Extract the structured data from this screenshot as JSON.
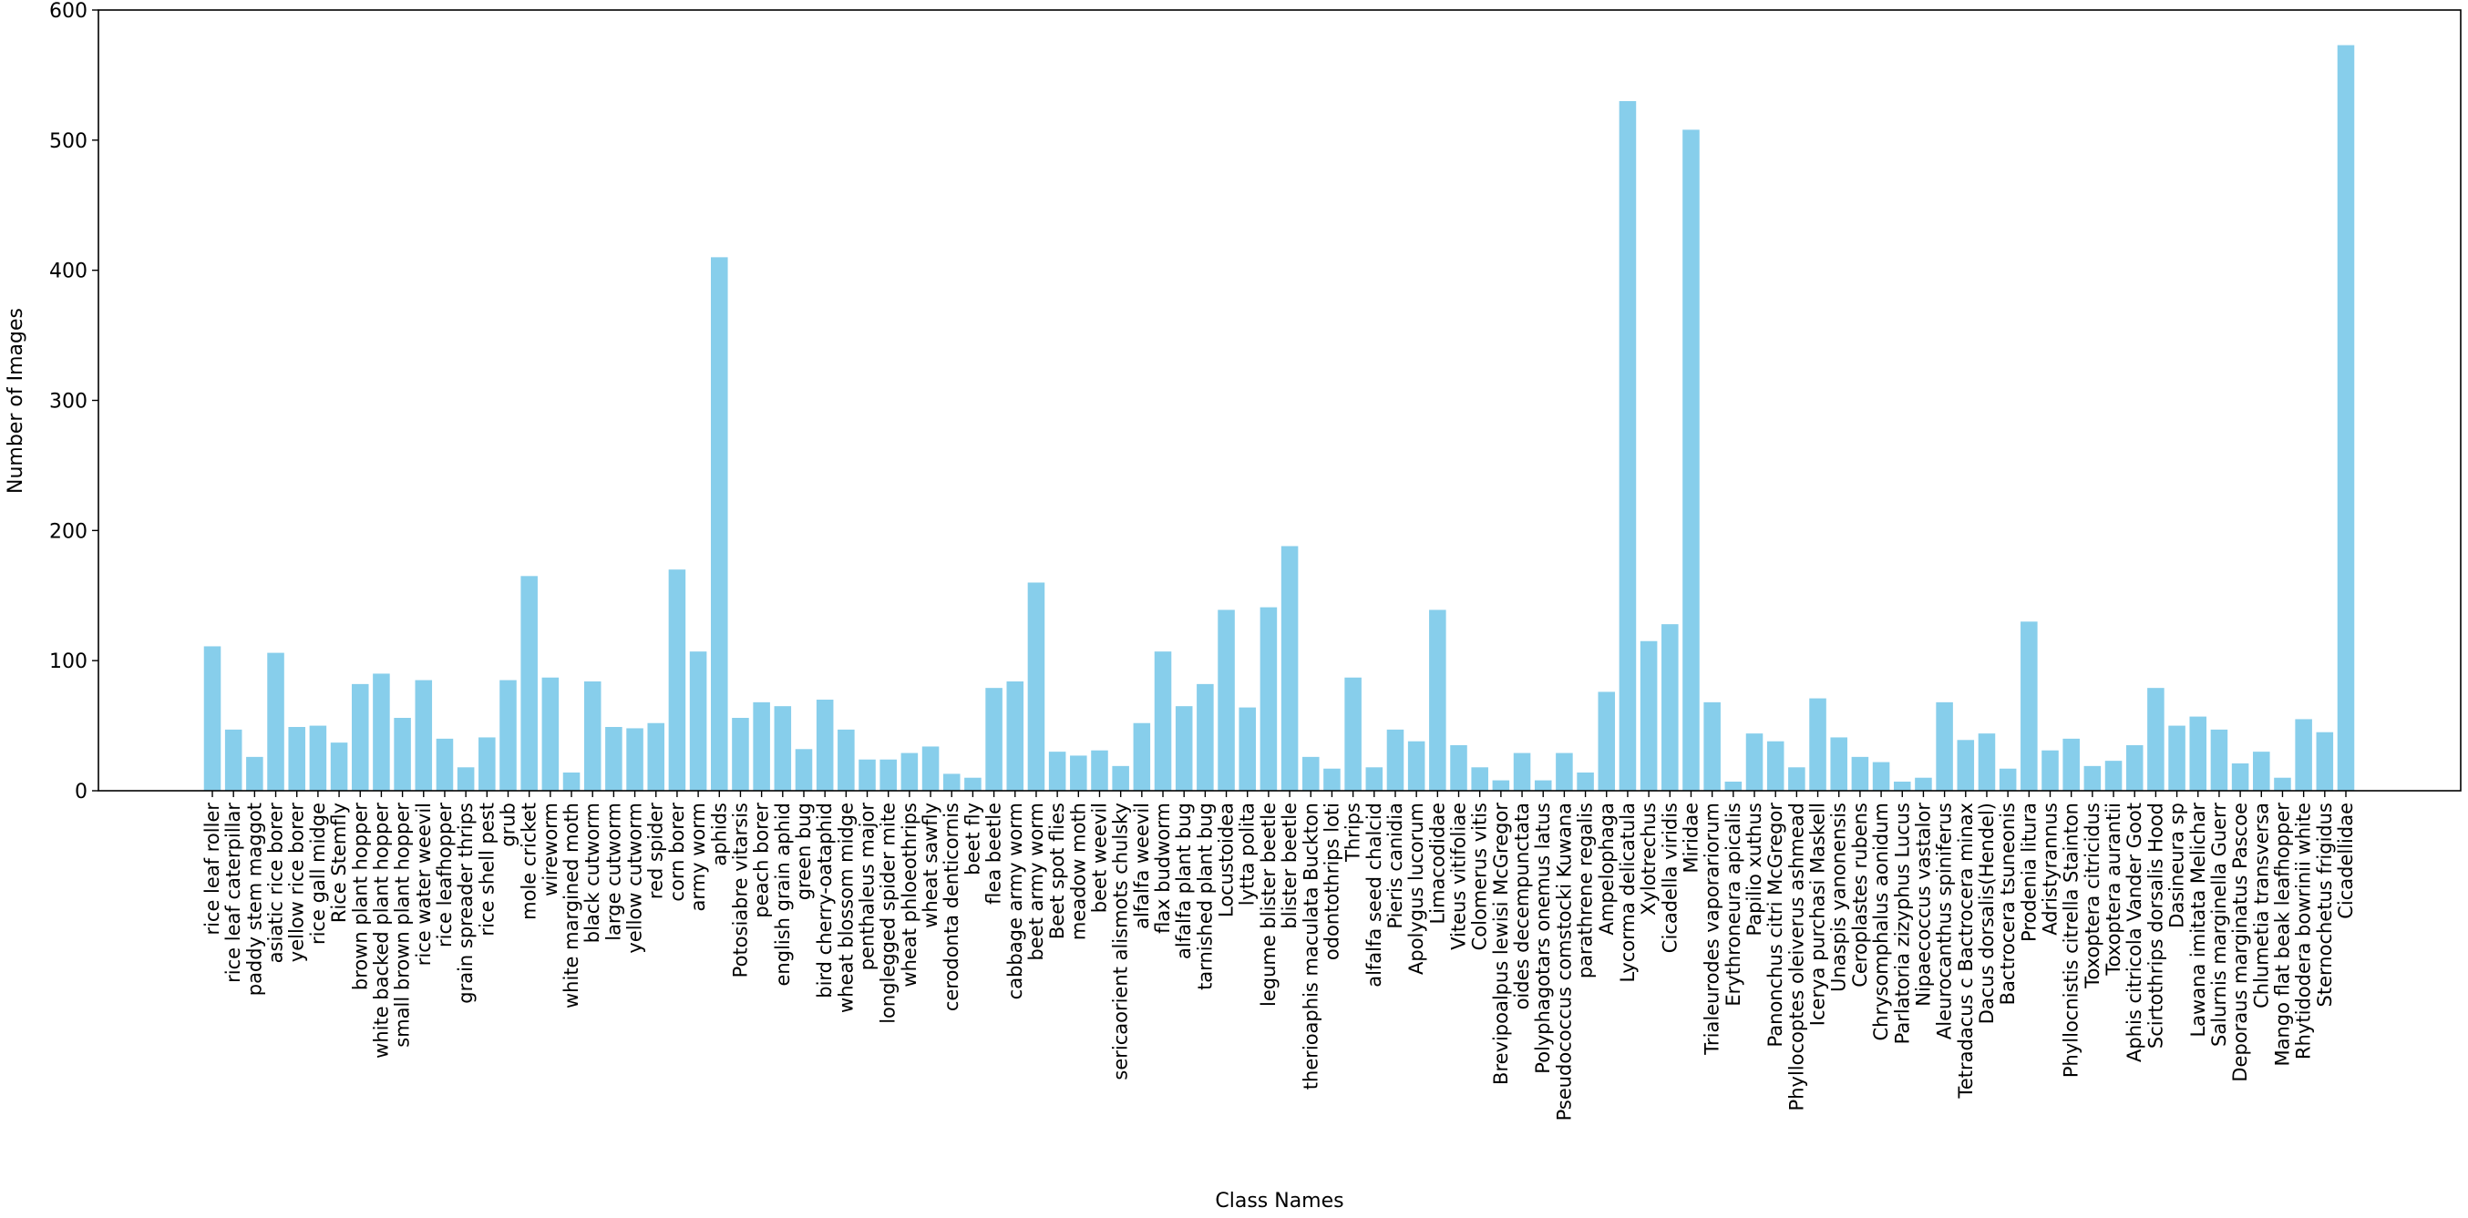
{
  "chart_data": {
    "type": "bar",
    "xlabel": "Class Names",
    "ylabel": "Number of Images",
    "ylim": [
      0,
      600
    ],
    "yticks": [
      0,
      100,
      200,
      300,
      400,
      500,
      600
    ],
    "grid": false,
    "legend": "none",
    "bar_color": "#87ceeb",
    "categories": [
      "rice leaf roller",
      "rice leaf caterpillar",
      "paddy stem maggot",
      "asiatic rice borer",
      "yellow rice borer",
      "rice gall midge",
      "Rice Stemfly",
      "brown plant hopper",
      "white backed plant hopper",
      "small brown plant hopper",
      "rice water weevil",
      "rice leafhopper",
      "grain spreader thrips",
      "rice shell pest",
      "grub",
      "mole cricket",
      "wireworm",
      "white margined moth",
      "black cutworm",
      "large cutworm",
      "yellow cutworm",
      "red spider",
      "corn borer",
      "army worm",
      "aphids",
      "Potosiabre vitarsis",
      "peach borer",
      "english grain aphid",
      "green bug",
      "bird cherry-oataphid",
      "wheat blossom midge",
      "penthaleus major",
      "longlegged spider mite",
      "wheat phloeothrips",
      "wheat sawfly",
      "cerodonta denticornis",
      "beet fly",
      "flea beetle",
      "cabbage army worm",
      "beet army worm",
      "Beet spot flies",
      "meadow moth",
      "beet weevil",
      "sericaorient alismots chulsky",
      "alfalfa weevil",
      "flax budworm",
      "alfalfa plant bug",
      "tarnished plant bug",
      "Locustoidea",
      "lytta polita",
      "legume blister beetle",
      "blister beetle",
      "therioaphis maculata Buckton",
      "odontothrips loti",
      "Thrips",
      "alfalfa seed chalcid",
      "Pieris canidia",
      "Apolygus lucorum",
      "Limacodidae",
      "Viteus vitifoliae",
      "Colomerus vitis",
      "Brevipoalpus lewisi McGregor",
      "oides decempunctata",
      "Polyphagotars onemus latus",
      "Pseudococcus comstocki Kuwana",
      "parathrene regalis",
      "Ampelophaga",
      "Lycorma delicatula",
      "Xylotrechus",
      "Cicadella viridis",
      "Miridae",
      "Trialeurodes vaporariorum",
      "Erythroneura apicalis",
      "Papilio xuthus",
      "Panonchus citri McGregor",
      "Phyllocoptes oleiverus ashmead",
      "Icerya purchasi Maskell",
      "Unaspis yanonensis",
      "Ceroplastes rubens",
      "Chrysomphalus aonidum",
      "Parlatoria zizyphus Lucus",
      "Nipaecoccus vastalor",
      "Aleurocanthus spiniferus",
      "Tetradacus c Bactrocera minax",
      "Dacus dorsalis(Hendel)",
      "Bactrocera tsuneonis",
      "Prodenia litura",
      "Adristyrannus",
      "Phyllocnistis citrella Stainton",
      "Toxoptera citricidus",
      "Toxoptera aurantii",
      "Aphis citricola Vander Goot",
      "Scirtothrips dorsalis Hood",
      "Dasineura sp",
      "Lawana imitata Melichar",
      "Salurnis marginella Guerr",
      "Deporaus marginatus Pascoe",
      "Chlumetia transversa",
      "Mango flat beak leafhopper",
      "Rhytidodera bowrinii white",
      "Sternochetus frigidus",
      "Cicadellidae"
    ],
    "values": [
      111,
      47,
      26,
      106,
      49,
      50,
      37,
      82,
      90,
      56,
      85,
      40,
      18,
      41,
      85,
      165,
      87,
      14,
      84,
      49,
      48,
      52,
      170,
      107,
      410,
      56,
      68,
      65,
      32,
      70,
      47,
      24,
      24,
      29,
      34,
      13,
      10,
      79,
      84,
      160,
      30,
      27,
      31,
      19,
      52,
      107,
      65,
      82,
      139,
      64,
      141,
      188,
      26,
      17,
      87,
      18,
      47,
      38,
      139,
      35,
      18,
      8,
      29,
      8,
      29,
      14,
      76,
      530,
      115,
      128,
      508,
      68,
      7,
      44,
      38,
      18,
      71,
      41,
      26,
      22,
      7,
      10,
      68,
      39,
      44,
      17,
      130,
      31,
      40,
      19,
      23,
      35,
      79,
      50,
      57,
      47,
      21,
      30,
      10,
      55,
      45,
      573
    ]
  }
}
